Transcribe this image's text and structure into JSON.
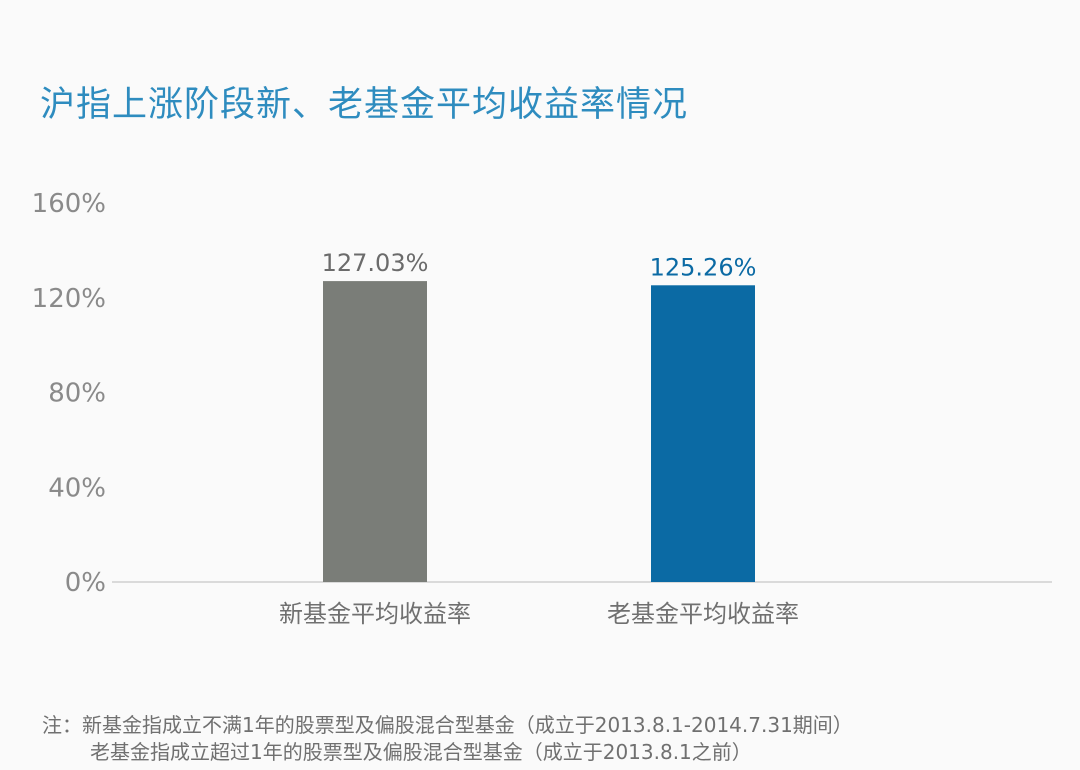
{
  "title": "沪指上涨阶段新、老基金平均收益率情况",
  "chart_data": {
    "type": "bar",
    "categories": [
      "新基金平均收益率",
      "老基金平均收益率"
    ],
    "values": [
      127.03,
      125.26
    ],
    "value_labels": [
      "127.03%",
      "125.26%"
    ],
    "bar_colors": [
      "#7a7d78",
      "#0b6aa4"
    ],
    "label_colors": [
      "#6b6b6b",
      "#0b6aa4"
    ],
    "yticks": [
      "0%",
      "40%",
      "80%",
      "120%",
      "160%"
    ],
    "ytick_values": [
      0,
      40,
      80,
      120,
      160
    ],
    "ylim": [
      0,
      160
    ],
    "grid": false,
    "legend": "none",
    "title": "沪指上涨阶段新、老基金平均收益率情况"
  },
  "note": {
    "line1": "注：新基金指成立不满1年的股票型及偏股混合型基金（成立于2013.8.1-2014.7.31期间）",
    "line2": "老基金指成立超过1年的股票型及偏股混合型基金（成立于2013.8.1之前）"
  }
}
